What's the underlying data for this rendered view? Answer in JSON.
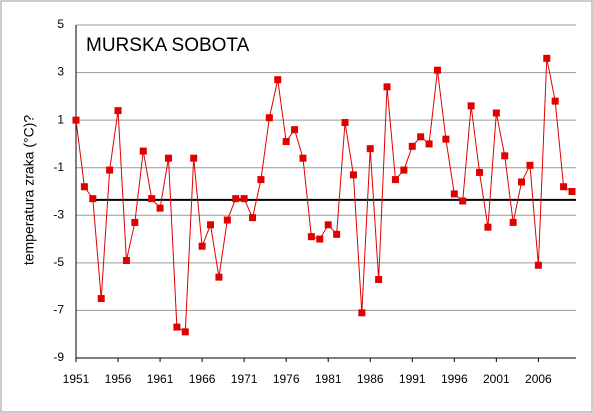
{
  "chart_data": {
    "type": "line",
    "title": "MURSKA SOBOTA",
    "y_label": "temperatura zraka (°C)?",
    "x": [
      1951,
      1952,
      1953,
      1954,
      1955,
      1956,
      1957,
      1958,
      1959,
      1960,
      1961,
      1962,
      1963,
      1964,
      1965,
      1966,
      1967,
      1968,
      1969,
      1970,
      1971,
      1972,
      1973,
      1974,
      1975,
      1976,
      1977,
      1978,
      1979,
      1980,
      1981,
      1982,
      1983,
      1984,
      1985,
      1986,
      1987,
      1988,
      1989,
      1990,
      1991,
      1992,
      1993,
      1994,
      1995,
      1996,
      1997,
      1998,
      1999,
      2000,
      2001,
      2002,
      2003,
      2004,
      2005,
      2006,
      2007,
      2008,
      2009,
      2010
    ],
    "series": [
      {
        "color": "#e00000",
        "values": [
          1.0,
          -1.8,
          -2.3,
          -6.5,
          -1.1,
          1.4,
          -4.9,
          -3.3,
          -0.3,
          -2.3,
          -2.7,
          -0.6,
          -7.7,
          -7.9,
          -0.6,
          -4.3,
          -3.4,
          -5.6,
          -3.2,
          -2.3,
          -2.3,
          -3.1,
          -1.5,
          1.1,
          2.7,
          0.1,
          0.6,
          -0.6,
          -3.9,
          -4.0,
          -3.4,
          -3.8,
          0.9,
          -1.3,
          -7.1,
          -0.2,
          -5.7,
          2.4,
          -1.5,
          -1.1,
          -0.1,
          0.3,
          0.0,
          3.1,
          0.2,
          -2.1,
          -2.4,
          1.6,
          -1.2,
          -3.5,
          1.3,
          -0.5,
          -3.3,
          -1.6,
          -0.9,
          -5.1,
          3.6,
          1.8,
          -1.8,
          -2.0
        ]
      }
    ],
    "reference_line": {
      "value": -2.35,
      "color": "#000000"
    },
    "xlim": [
      1951,
      2010
    ],
    "xticks": [
      1951,
      1956,
      1961,
      1966,
      1971,
      1976,
      1981,
      1986,
      1991,
      1996,
      2001,
      2006
    ],
    "ylim": [
      -9,
      5
    ],
    "yticks": [
      -9,
      -7,
      -5,
      -3,
      -1,
      1,
      3,
      5
    ],
    "grid": true
  }
}
